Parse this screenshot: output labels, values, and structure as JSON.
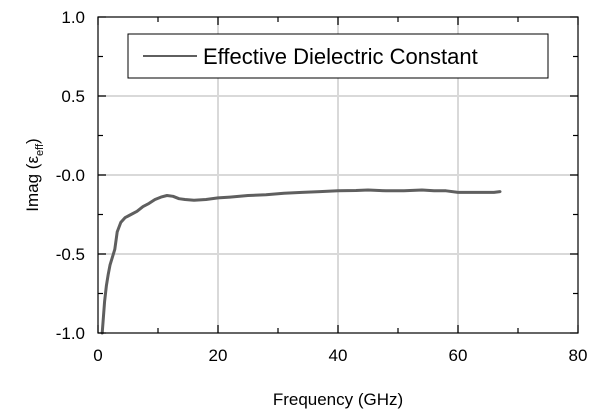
{
  "chart_data": {
    "type": "line",
    "xlabel": "Frequency (GHz)",
    "ylabel": "Imag (ε",
    "ylabel_subscript": "eff",
    "ylabel_close": ")",
    "xlim": [
      0,
      80
    ],
    "ylim": [
      -1.0,
      1.0
    ],
    "x_ticks": [
      0,
      20,
      40,
      60,
      80
    ],
    "x_tick_labels": [
      "0",
      "20",
      "40",
      "60",
      "80"
    ],
    "y_ticks": [
      1.0,
      0.5,
      -0.0,
      -0.5,
      -1.0
    ],
    "y_tick_labels": [
      "1.0",
      "0.5",
      "-0.0",
      "-0.5",
      "-1.0"
    ],
    "x_minor_step": 10,
    "y_minor_step": 0.25,
    "grid": true,
    "legend_position": "top",
    "series": [
      {
        "name": "Effective Dielectric Constant",
        "color": "#5f5f5f",
        "x": [
          0.7,
          0.9,
          1.1,
          1.4,
          1.7,
          2.0,
          2.4,
          2.8,
          3.2,
          3.8,
          4.5,
          5.5,
          6.5,
          7.5,
          8.5,
          9.5,
          10.5,
          11.5,
          12.5,
          13.5,
          14.5,
          16,
          18,
          20,
          22,
          25,
          28,
          31,
          34,
          37,
          40,
          43,
          45,
          48,
          51,
          54,
          56,
          58,
          60,
          62,
          64,
          66,
          67
        ],
        "y": [
          -1.0,
          -0.9,
          -0.8,
          -0.7,
          -0.63,
          -0.57,
          -0.52,
          -0.47,
          -0.36,
          -0.3,
          -0.27,
          -0.25,
          -0.23,
          -0.2,
          -0.18,
          -0.155,
          -0.14,
          -0.13,
          -0.135,
          -0.15,
          -0.155,
          -0.16,
          -0.155,
          -0.145,
          -0.14,
          -0.13,
          -0.125,
          -0.115,
          -0.11,
          -0.105,
          -0.1,
          -0.098,
          -0.095,
          -0.1,
          -0.1,
          -0.095,
          -0.1,
          -0.1,
          -0.11,
          -0.11,
          -0.11,
          -0.11,
          -0.105
        ]
      }
    ]
  }
}
